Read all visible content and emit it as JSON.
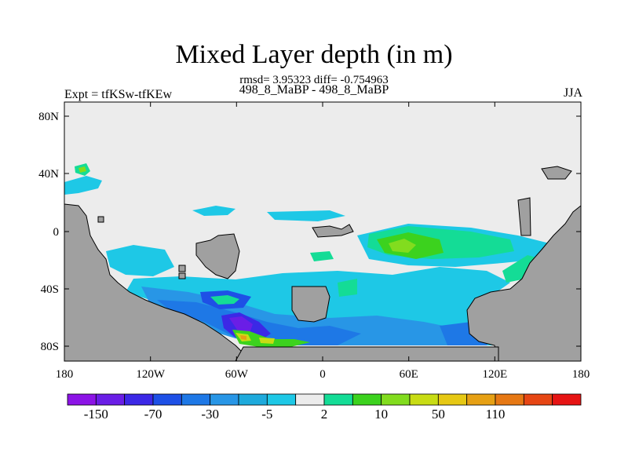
{
  "header": {
    "title": "Mixed Layer depth (in m)",
    "stats": "rmsd= 3.95323  diff= -0.754963",
    "subtitle": "498_8_MaBP - 498_8_MaBP",
    "left_label": "Expt = tfKSw-tfKEw",
    "right_label": "JJA"
  },
  "map": {
    "x_ticks": [
      "180",
      "120W",
      "60W",
      "0",
      "60E",
      "120E",
      "180"
    ],
    "y_ticks": [
      "80N",
      "40N",
      "0",
      "40S",
      "80S"
    ],
    "land_color": "#a0a0a0",
    "ocean_color": "#ececec"
  },
  "colorbar": {
    "colors": [
      "#8c14e6",
      "#6a1ee6",
      "#3c28e6",
      "#1e50e6",
      "#1e78e6",
      "#2896e6",
      "#1eaadc",
      "#1ec8e6",
      "#ececec",
      "#14dc96",
      "#3cd21e",
      "#82dc1e",
      "#c8dc14",
      "#e6c814",
      "#e6a014",
      "#e67814",
      "#e64614",
      "#e61414"
    ],
    "labels": [
      "-150",
      "-70",
      "-30",
      "-5",
      "2",
      "10",
      "50",
      "110"
    ]
  }
}
